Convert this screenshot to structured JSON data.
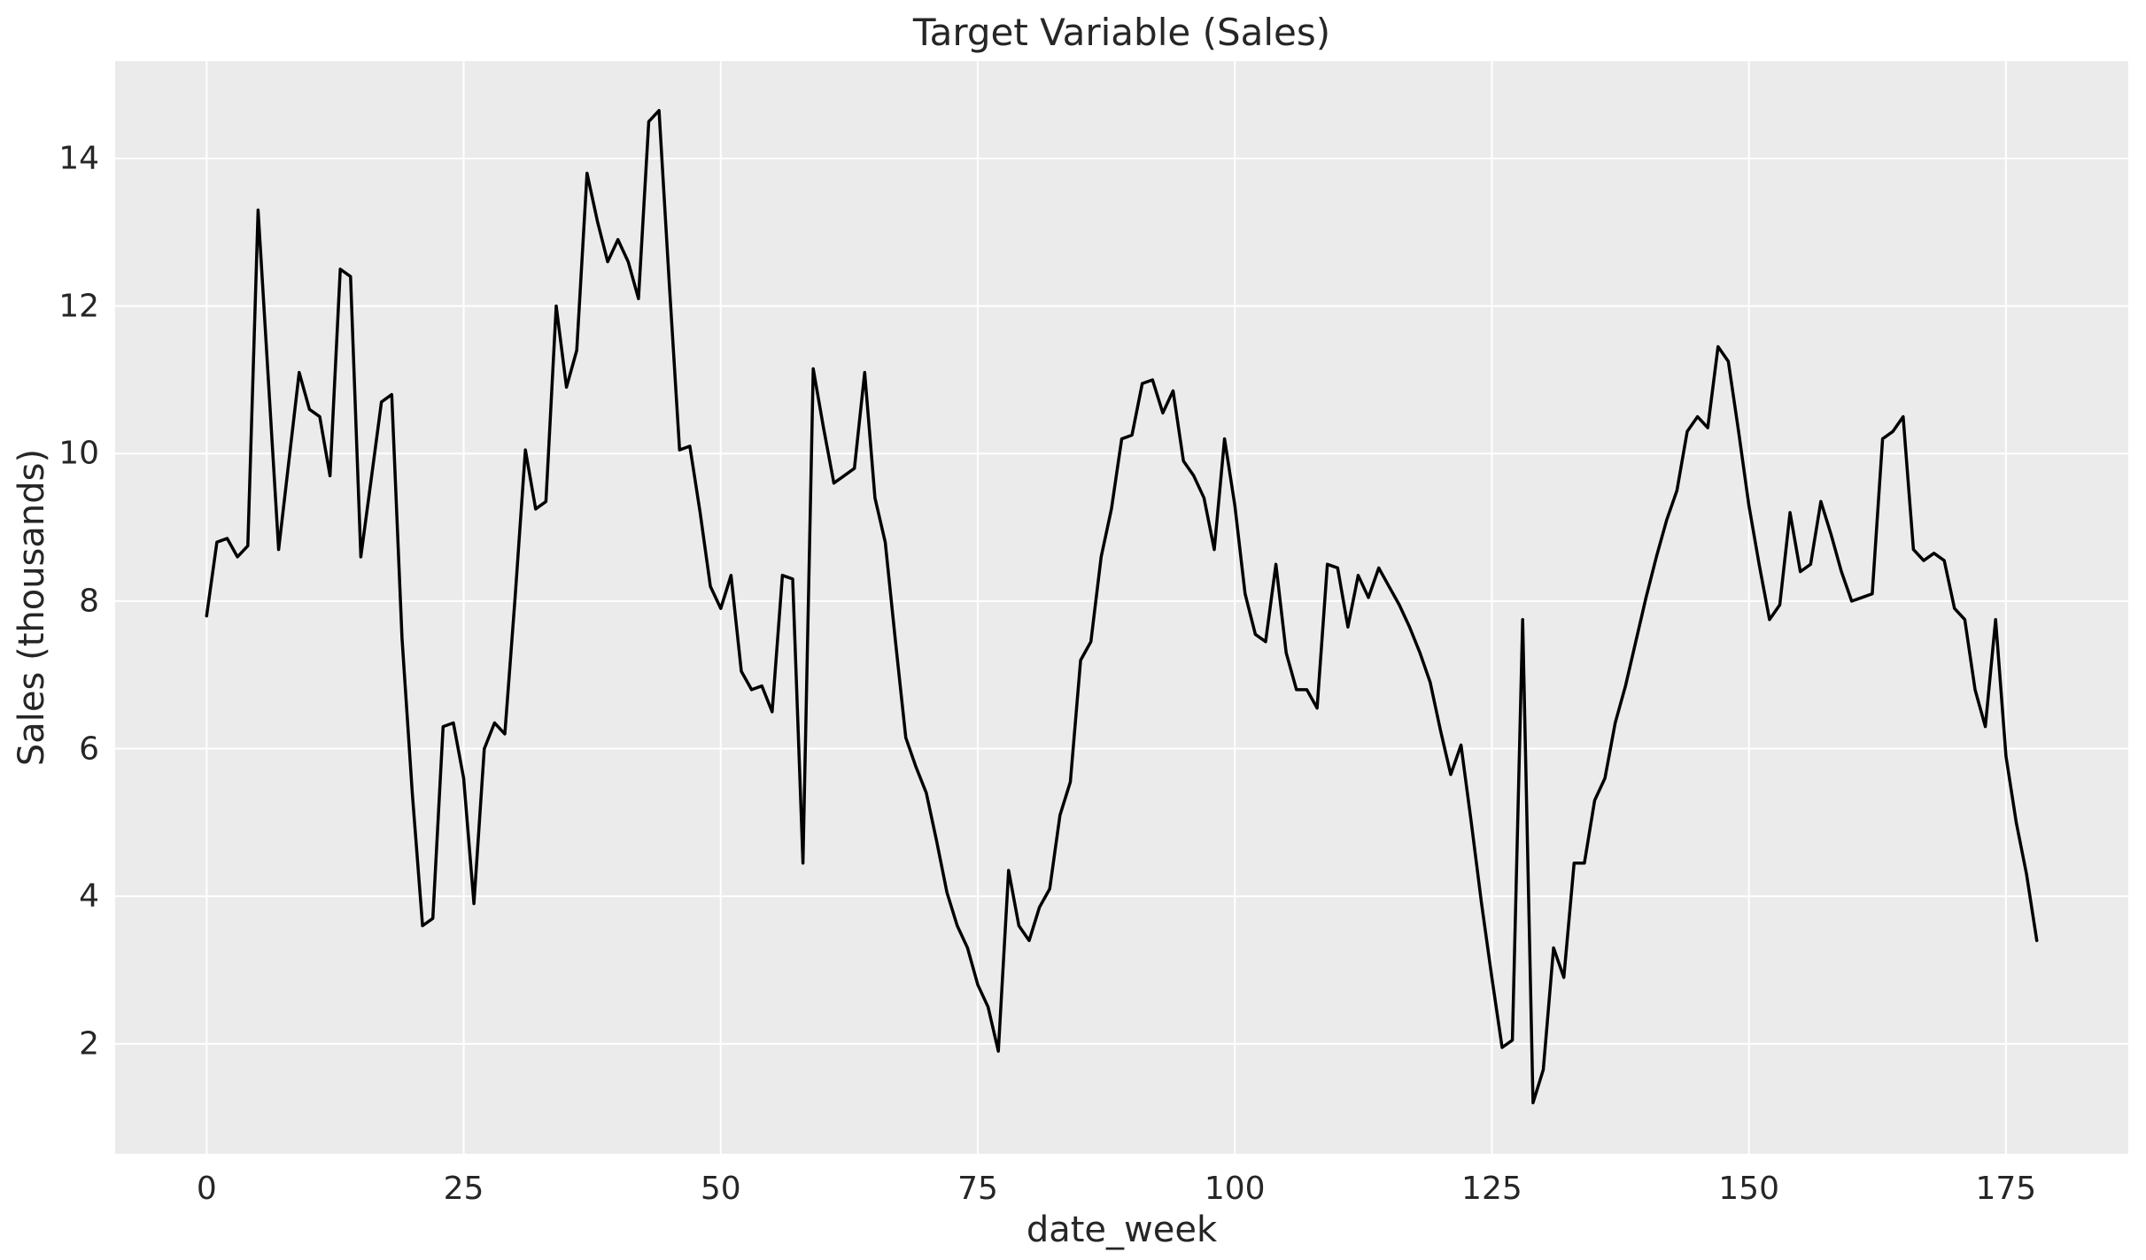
{
  "chart_data": {
    "type": "line",
    "title": "Target Variable (Sales)",
    "xlabel": "date_week",
    "ylabel": "Sales (thousands)",
    "x_start": 0,
    "x_step": 1,
    "values": [
      7.8,
      8.8,
      8.85,
      8.6,
      8.75,
      13.3,
      11.0,
      8.7,
      9.9,
      11.1,
      10.6,
      10.5,
      9.7,
      12.5,
      12.4,
      8.6,
      9.65,
      10.7,
      10.8,
      7.5,
      5.4,
      3.6,
      3.7,
      6.3,
      6.35,
      5.6,
      3.9,
      6.0,
      6.35,
      6.2,
      8.05,
      10.05,
      9.25,
      9.35,
      12.0,
      10.9,
      11.4,
      13.8,
      13.15,
      12.6,
      12.9,
      12.6,
      12.1,
      14.5,
      14.65,
      12.3,
      10.05,
      10.1,
      9.2,
      8.2,
      7.9,
      8.35,
      7.05,
      6.8,
      6.85,
      6.5,
      8.35,
      8.3,
      4.45,
      11.15,
      10.35,
      9.6,
      9.7,
      9.8,
      11.1,
      9.4,
      8.8,
      7.45,
      6.15,
      5.75,
      5.4,
      4.75,
      4.05,
      3.6,
      3.3,
      2.8,
      2.5,
      1.9,
      4.35,
      3.6,
      3.4,
      3.85,
      4.1,
      5.1,
      5.55,
      7.2,
      7.45,
      8.6,
      9.25,
      10.2,
      10.25,
      10.95,
      11.0,
      10.55,
      10.85,
      9.9,
      9.7,
      9.4,
      8.7,
      10.2,
      9.3,
      8.1,
      7.55,
      7.45,
      8.5,
      7.3,
      6.8,
      6.8,
      6.55,
      8.5,
      8.45,
      7.65,
      8.35,
      8.05,
      8.45,
      8.2,
      7.95,
      7.65,
      7.3,
      6.9,
      6.25,
      5.65,
      6.05,
      5.0,
      3.9,
      2.9,
      1.95,
      2.05,
      7.75,
      1.2,
      1.65,
      3.3,
      2.9,
      4.45,
      4.45,
      5.3,
      5.6,
      6.35,
      6.85,
      7.45,
      8.05,
      8.6,
      9.1,
      9.5,
      10.3,
      10.5,
      10.35,
      11.45,
      11.25,
      10.3,
      9.3,
      8.5,
      7.75,
      7.95,
      9.2,
      8.4,
      8.5,
      9.35,
      8.9,
      8.4,
      8.0,
      8.05,
      8.1,
      10.2,
      10.3,
      10.5,
      8.7,
      8.55,
      8.65,
      8.55,
      7.9,
      7.75,
      6.8,
      6.3,
      7.75,
      5.9,
      5.0,
      4.3,
      3.4
    ],
    "x_ticks": [
      0,
      25,
      50,
      75,
      100,
      125,
      150,
      175
    ],
    "y_ticks": [
      2,
      4,
      6,
      8,
      10,
      12,
      14
    ],
    "xlim": [
      -8.9,
      186.9
    ],
    "ylim": [
      0.51,
      15.32
    ],
    "grid": true,
    "legend_position": "none",
    "line_color": "#000000",
    "line_width": 3.5,
    "axes_background": "#ebebeb",
    "grid_color": "#ffffff",
    "text_color": "#262626"
  }
}
